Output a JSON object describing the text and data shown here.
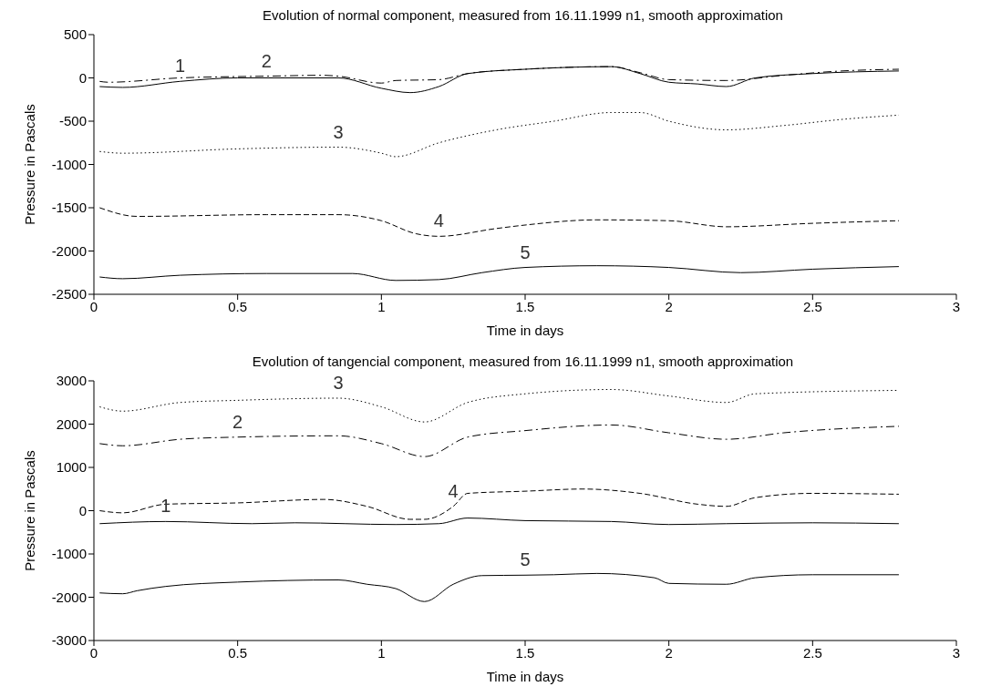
{
  "chart_data": [
    {
      "type": "line",
      "title": "Evolution of normal component, measured from 16.11.1999 n1, smooth approximation",
      "xlabel": "Time in days",
      "ylabel": "Pressure in Pascals",
      "xlim": [
        0,
        3
      ],
      "xticks": [
        0,
        0.5,
        1,
        1.5,
        2,
        2.5,
        3
      ],
      "ylim": [
        -2500,
        500
      ],
      "yticks": [
        -2500,
        -2000,
        -1500,
        -1000,
        -500,
        0,
        500
      ],
      "grid": false,
      "series": [
        {
          "color": "#000000",
          "line_style": "solid",
          "x": [
            0.02,
            0.1,
            0.3,
            0.5,
            0.85,
            1.0,
            1.1,
            1.2,
            1.3,
            1.5,
            1.8,
            1.9,
            2.0,
            2.1,
            2.2,
            2.3,
            2.5,
            2.8
          ],
          "values": [
            -100,
            -110,
            -40,
            0,
            0,
            -120,
            -170,
            -100,
            50,
            100,
            130,
            50,
            -50,
            -70,
            -100,
            0,
            50,
            80
          ]
        },
        {
          "color": "#000000",
          "line_style": "dashdot",
          "x": [
            0.02,
            0.05,
            0.3,
            0.6,
            0.8,
            0.85,
            1.0,
            1.05,
            1.2,
            1.3,
            1.5,
            1.8,
            1.9,
            2.0,
            2.2,
            2.4,
            2.6,
            2.8
          ],
          "values": [
            -40,
            -50,
            0,
            20,
            30,
            20,
            -60,
            -30,
            -20,
            50,
            100,
            130,
            60,
            -20,
            -30,
            30,
            80,
            100
          ]
        },
        {
          "color": "#000000",
          "line_style": "dotted",
          "x": [
            0.02,
            0.1,
            0.5,
            0.85,
            1.0,
            1.05,
            1.2,
            1.4,
            1.6,
            1.8,
            1.9,
            2.0,
            2.2,
            2.4,
            2.6,
            2.8
          ],
          "values": [
            -850,
            -870,
            -820,
            -800,
            -870,
            -910,
            -750,
            -600,
            -500,
            -400,
            -400,
            -500,
            -600,
            -550,
            -480,
            -430
          ]
        },
        {
          "color": "#000000",
          "line_style": "dashed",
          "x": [
            0.02,
            0.15,
            0.6,
            0.85,
            1.0,
            1.12,
            1.2,
            1.4,
            1.5,
            1.75,
            2.0,
            2.2,
            2.5,
            2.8
          ],
          "values": [
            -1500,
            -1600,
            -1580,
            -1580,
            -1650,
            -1800,
            -1830,
            -1740,
            -1700,
            -1640,
            -1650,
            -1720,
            -1680,
            -1650
          ]
        },
        {
          "color": "#000000",
          "line_style": "solid",
          "x": [
            0.02,
            0.1,
            0.3,
            0.6,
            0.9,
            1.05,
            1.2,
            1.35,
            1.5,
            1.75,
            2.0,
            2.25,
            2.5,
            2.8
          ],
          "values": [
            -2300,
            -2320,
            -2280,
            -2260,
            -2260,
            -2340,
            -2330,
            -2250,
            -2190,
            -2170,
            -2190,
            -2250,
            -2210,
            -2180
          ]
        }
      ],
      "annotations": [
        {
          "text": "1",
          "x": 0.3,
          "y": -40
        },
        {
          "text": "2",
          "x": 0.6,
          "y": 20
        },
        {
          "text": "3",
          "x": 0.85,
          "y": -800
        },
        {
          "text": "4",
          "x": 1.2,
          "y": -1830
        },
        {
          "text": "5",
          "x": 1.5,
          "y": -2190
        }
      ]
    },
    {
      "type": "line",
      "title": "Evolution of tangencial component, measured from 16.11.1999 n1, smooth approximation",
      "xlabel": "Time in days",
      "ylabel": "Pressure in Pascals",
      "xlim": [
        0,
        3
      ],
      "xticks": [
        0,
        0.5,
        1,
        1.5,
        2,
        2.5,
        3
      ],
      "ylim": [
        -3000,
        3000
      ],
      "yticks": [
        -3000,
        -2000,
        -1000,
        0,
        1000,
        2000,
        3000
      ],
      "grid": false,
      "series": [
        {
          "color": "#000000",
          "line_style": "solid",
          "x": [
            0.02,
            0.25,
            0.55,
            0.7,
            1.05,
            1.2,
            1.3,
            1.5,
            1.8,
            2.0,
            2.2,
            2.5,
            2.8
          ],
          "values": [
            -300,
            -250,
            -300,
            -280,
            -320,
            -300,
            -170,
            -230,
            -250,
            -320,
            -300,
            -280,
            -300
          ]
        },
        {
          "color": "#000000",
          "line_style": "dashdot",
          "x": [
            0.02,
            0.1,
            0.3,
            0.5,
            0.85,
            1.0,
            1.15,
            1.3,
            1.5,
            1.8,
            2.0,
            2.2,
            2.4,
            2.8
          ],
          "values": [
            1550,
            1500,
            1650,
            1700,
            1730,
            1550,
            1250,
            1700,
            1850,
            1980,
            1800,
            1650,
            1800,
            1950
          ]
        },
        {
          "color": "#000000",
          "line_style": "dotted",
          "x": [
            0.02,
            0.1,
            0.3,
            0.5,
            0.85,
            1.0,
            1.15,
            1.3,
            1.5,
            1.8,
            2.0,
            2.2,
            2.3,
            2.8
          ],
          "values": [
            2400,
            2300,
            2500,
            2550,
            2600,
            2400,
            2050,
            2500,
            2700,
            2800,
            2650,
            2500,
            2700,
            2780
          ]
        },
        {
          "color": "#000000",
          "line_style": "dashed",
          "x": [
            0.02,
            0.1,
            0.25,
            0.5,
            0.8,
            0.95,
            1.1,
            1.15,
            1.25,
            1.3,
            1.5,
            1.7,
            1.9,
            2.1,
            2.2,
            2.3,
            2.5,
            2.8
          ],
          "values": [
            0,
            -50,
            150,
            180,
            260,
            100,
            -200,
            -200,
            100,
            400,
            450,
            500,
            400,
            150,
            100,
            300,
            400,
            380
          ]
        },
        {
          "color": "#000000",
          "line_style": "solid",
          "x": [
            0.02,
            0.1,
            0.15,
            0.25,
            0.5,
            0.85,
            0.95,
            1.05,
            1.15,
            1.25,
            1.35,
            1.5,
            1.6,
            1.75,
            1.95,
            2.0,
            2.2,
            2.3,
            2.5,
            2.8
          ],
          "values": [
            -1900,
            -1920,
            -1850,
            -1750,
            -1650,
            -1600,
            -1700,
            -1800,
            -2100,
            -1700,
            -1500,
            -1490,
            -1480,
            -1450,
            -1550,
            -1680,
            -1700,
            -1550,
            -1480,
            -1480
          ]
        }
      ],
      "annotations": [
        {
          "text": "1",
          "x": 0.25,
          "y": -250
        },
        {
          "text": "2",
          "x": 0.5,
          "y": 1700
        },
        {
          "text": "3",
          "x": 0.85,
          "y": 2600
        },
        {
          "text": "4",
          "x": 1.25,
          "y": 100
        },
        {
          "text": "5",
          "x": 1.5,
          "y": -1490
        }
      ]
    }
  ]
}
